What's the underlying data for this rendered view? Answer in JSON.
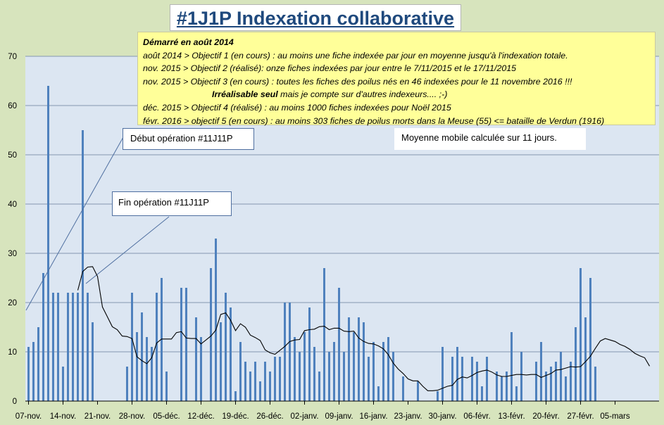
{
  "title": "#1J1P Indexation collaborative",
  "objectives": {
    "line1": "Démarré en août 2014",
    "line2": "août 2014 > Objectif  1 (en cours) : au moins une fiche indexée par jour en moyenne jusqu'à l'indexation totale.",
    "line3": "nov. 2015 > Objectif 2  (réalisé): onze fiches indexées par jour entre le  7/11/2015  et le 17/11/2015",
    "line4": "nov. 2015 > Objectif  3 (en cours) : toutes les fiches des poilus nés en 46 indexées pour le 11 novembre 2016  !!!",
    "line5_bold": "Irréalisable seul",
    "line5_rest": " mais je compte sur d'autres indexeurs.... ;-)",
    "line6": "déc. 2015 > Objectif 4 (réalisé) : au moins 1000 fiches indexées pour Noël 2015",
    "line7": "févr. 2016 > objectif 5 (en cours) : au moins 303 fiches de poilus morts dans la Meuse (55) <= bataille de Verdun (1916)"
  },
  "annotations": {
    "debut": "Début opération #11J11P",
    "fin": "Fin opération #11J11P",
    "moving_average": "Moyenne mobile calculée sur 11 jours."
  },
  "colors": {
    "background": "#d7e4bd",
    "plot": "#dce6f2",
    "bars": "#4f81bd",
    "line": "#000000",
    "title": "#1f497d"
  },
  "chart_data": {
    "type": "bar",
    "ylim": [
      0,
      70
    ],
    "yticks": [
      0,
      10,
      20,
      30,
      40,
      50,
      60,
      70
    ],
    "x_start": "2015-11-07",
    "x_ticks": [
      "07-nov.",
      "14-nov.",
      "21-nov.",
      "28-nov.",
      "05-déc.",
      "12-déc.",
      "19-déc.",
      "26-déc.",
      "02-janv.",
      "09-janv.",
      "16-janv.",
      "23-janv.",
      "30-janv.",
      "06-févr.",
      "13-févr.",
      "20-févr.",
      "27-févr.",
      "05-mars"
    ],
    "grid": true,
    "series": [
      {
        "type": "bar",
        "values": [
          11,
          12,
          15,
          26,
          64,
          22,
          22,
          7,
          22,
          22,
          22,
          55,
          22,
          16,
          0,
          0,
          0,
          0,
          0,
          0,
          7,
          22,
          14,
          18,
          13,
          11,
          22,
          25,
          6,
          0,
          0,
          23,
          23,
          0,
          17,
          13,
          0,
          27,
          33,
          16,
          22,
          19,
          2,
          12,
          8,
          6,
          8,
          4,
          8,
          6,
          9,
          9,
          20,
          20,
          13,
          10,
          14,
          19,
          11,
          6,
          27,
          10,
          12,
          23,
          10,
          17,
          14,
          17,
          16,
          9,
          12,
          3,
          12,
          13,
          10,
          0,
          5,
          0,
          0,
          4,
          0,
          0,
          0,
          2,
          11,
          0,
          9,
          11,
          9,
          0,
          9,
          8,
          3,
          9,
          0,
          6,
          5,
          6,
          14,
          3,
          10,
          0,
          0,
          8,
          12,
          6,
          7,
          8,
          10,
          5,
          8,
          15,
          27,
          17,
          25,
          7,
          0,
          0,
          0,
          0,
          0,
          0,
          0,
          0
        ],
        "name": ""
      },
      {
        "type": "line",
        "start_index": 10,
        "values": [
          22.5,
          26.3,
          27.2,
          27.3,
          25.3,
          19.1,
          17.1,
          15.1,
          14.5,
          13.2,
          13.1,
          12.7,
          9,
          8.2,
          7.6,
          8.8,
          11.8,
          12.6,
          12.6,
          12.6,
          13.9,
          14.1,
          12.8,
          12.7,
          12.7,
          11.6,
          12.4,
          13.2,
          14.4,
          17.6,
          17.9,
          16.4,
          14.3,
          15.7,
          15,
          13.4,
          12.9,
          12.3,
          10.4,
          9.8,
          9.5,
          10.3,
          11.1,
          12.1,
          12.4,
          12.5,
          14.3,
          14.5,
          14.6,
          15.1,
          15.2,
          14.5,
          14.8,
          14.8,
          14.2,
          14.1,
          14.2,
          12.8,
          12.1,
          11.7,
          11.6,
          11.2,
          10.6,
          9.4,
          7.7,
          6.5,
          5.6,
          4.5,
          4.1,
          4.1,
          3,
          2.1,
          2.1,
          2.2,
          2.6,
          3,
          3.2,
          4.4,
          4.9,
          4.7,
          5.2,
          5.8,
          6.1,
          6.3,
          5.9,
          5.3,
          5,
          5,
          5.2,
          5.4,
          5.4,
          5.3,
          5.4,
          5.4,
          4.8,
          5.2,
          5.6,
          6.3,
          6.4,
          6.7,
          7,
          6.9,
          7,
          8,
          9.1,
          10.7,
          12.2,
          12.7,
          12.4,
          12.1,
          11.5,
          11.1,
          10.5,
          9.7,
          9.2,
          8.8,
          7.1
        ]
      }
    ]
  }
}
